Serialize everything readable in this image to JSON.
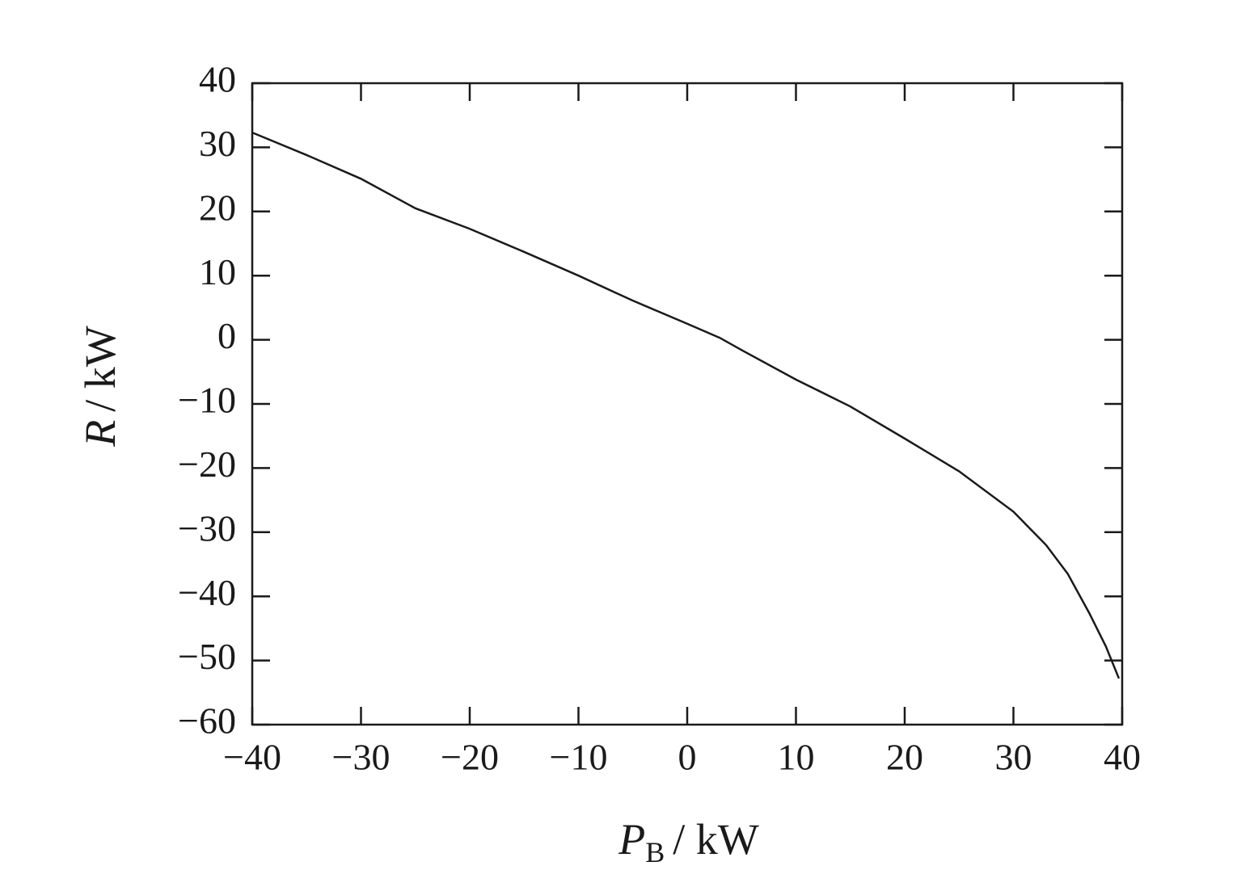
{
  "chart_data": {
    "type": "line",
    "xlabel": {
      "symbol": "P",
      "subscript": "B",
      "unit": "/ kW"
    },
    "ylabel": {
      "symbol": "R",
      "unit": "/ kW"
    },
    "xlim": [
      -40,
      40
    ],
    "ylim": [
      -60,
      40
    ],
    "xticks": [
      {
        "value": -40,
        "label": "−40"
      },
      {
        "value": -30,
        "label": "−30"
      },
      {
        "value": -20,
        "label": "−20"
      },
      {
        "value": -10,
        "label": "−10"
      },
      0,
      10,
      20,
      30,
      40
    ],
    "yticks": [
      {
        "value": -60,
        "label": "−60"
      },
      {
        "value": -50,
        "label": "−50"
      },
      {
        "value": -40,
        "label": "−40"
      },
      {
        "value": -30,
        "label": "−30"
      },
      {
        "value": -20,
        "label": "−20"
      },
      {
        "value": -10,
        "label": "−10"
      },
      0,
      10,
      20,
      30,
      40
    ],
    "grid": false,
    "x": [
      -40,
      -35,
      -30,
      -25,
      -20,
      -15,
      -10,
      -5,
      0,
      3,
      5,
      10,
      15,
      20,
      25,
      30,
      33,
      35,
      37,
      38.5,
      39.7
    ],
    "series": [
      {
        "color": "#1a1a1a",
        "values": [
          32.3,
          28.8,
          25.1,
          20.5,
          17.3,
          13.7,
          10.0,
          6.1,
          2.5,
          0.3,
          -1.6,
          -6.2,
          -10.4,
          -15.4,
          -20.5,
          -26.8,
          -32.0,
          -36.5,
          -42.7,
          -47.8,
          -52.8
        ]
      }
    ]
  }
}
